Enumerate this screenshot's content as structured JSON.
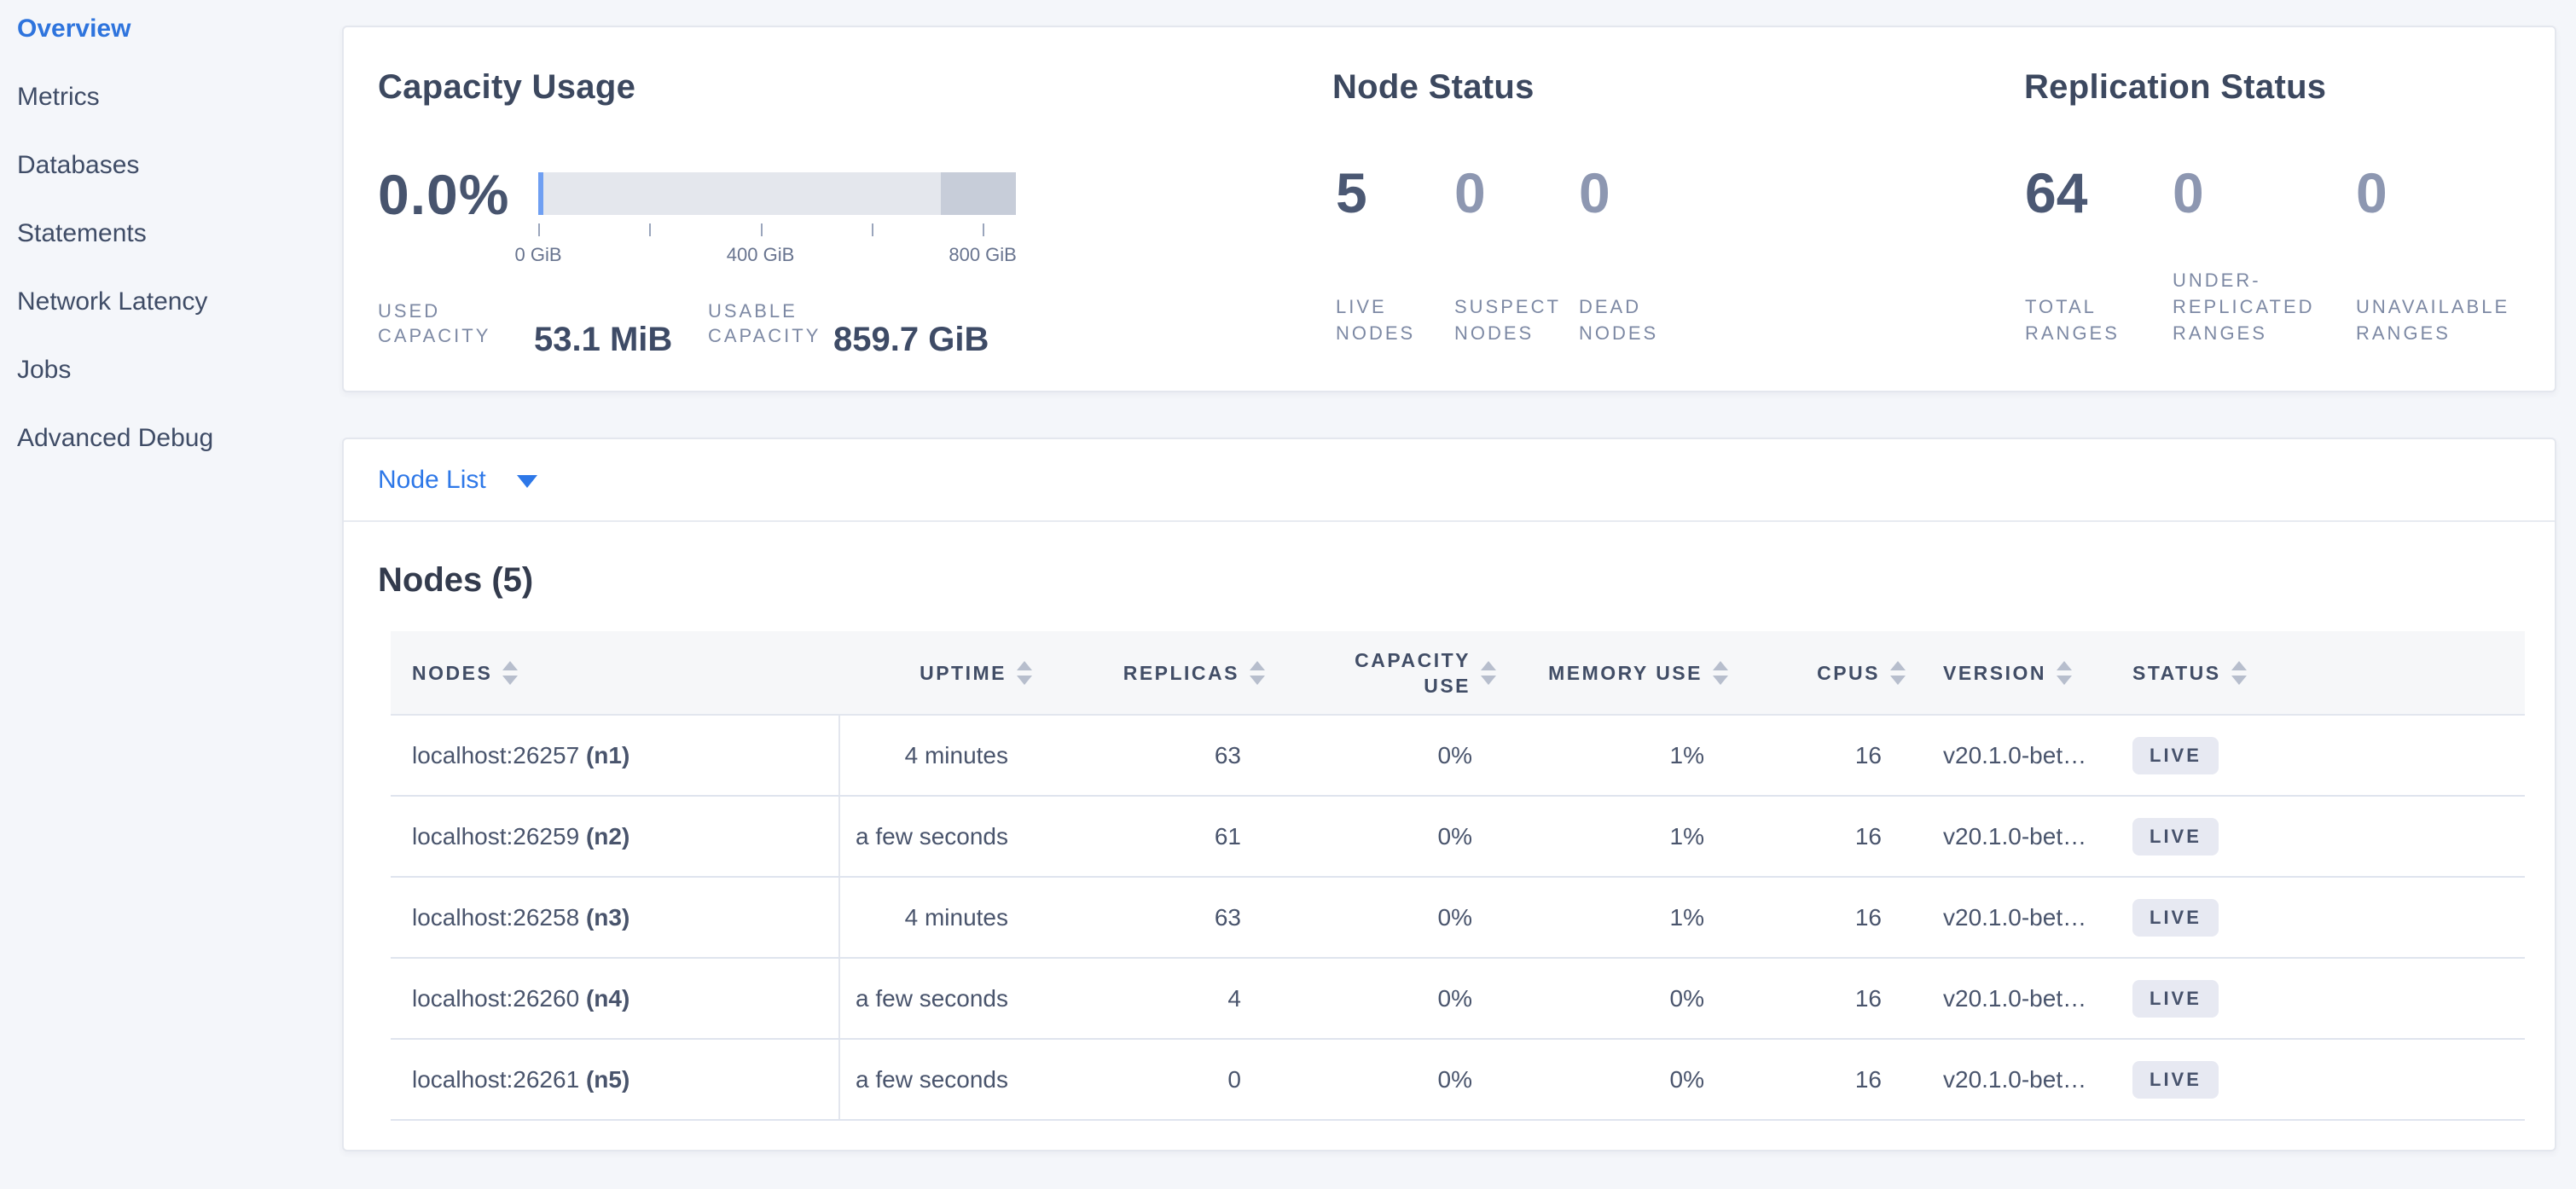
{
  "sidebar": {
    "items": [
      {
        "label": "Overview",
        "active": true
      },
      {
        "label": "Metrics",
        "active": false
      },
      {
        "label": "Databases",
        "active": false
      },
      {
        "label": "Statements",
        "active": false
      },
      {
        "label": "Network Latency",
        "active": false
      },
      {
        "label": "Jobs",
        "active": false
      },
      {
        "label": "Advanced Debug",
        "active": false
      }
    ]
  },
  "capacity": {
    "title": "Capacity Usage",
    "percent": "0.0%",
    "used": {
      "label_lines": [
        "USED",
        "CAPACITY"
      ],
      "value": "53.1 MiB"
    },
    "usable": {
      "label_lines": [
        "USABLE",
        "CAPACITY"
      ],
      "value": "859.7 GiB"
    }
  },
  "chart_data": {
    "type": "bar",
    "title": "Capacity Usage",
    "unit": "GiB",
    "axis_max_gib": 859.7,
    "ticks": [
      {
        "gib": 0,
        "label": "0 GiB"
      },
      {
        "gib": 200,
        "label": ""
      },
      {
        "gib": 400,
        "label": "400 GiB"
      },
      {
        "gib": 600,
        "label": ""
      },
      {
        "gib": 800,
        "label": "800 GiB"
      }
    ],
    "segments": [
      {
        "name": "used",
        "from_gib": 0,
        "to_gib": 0.052,
        "color": "#6f9ff2"
      },
      {
        "name": "other-used-disk",
        "from_gib": 725,
        "to_gib": 859.7,
        "color": "#c7cdd9"
      }
    ],
    "track_color": "#e4e7ed"
  },
  "node_status": {
    "title": "Node Status",
    "metrics": [
      {
        "value": "5",
        "dim": false,
        "label_lines": [
          "LIVE",
          "NODES"
        ]
      },
      {
        "value": "0",
        "dim": true,
        "label_lines": [
          "SUSPECT",
          "NODES"
        ]
      },
      {
        "value": "0",
        "dim": true,
        "label_lines": [
          "DEAD",
          "NODES"
        ]
      }
    ]
  },
  "replication_status": {
    "title": "Replication Status",
    "metrics": [
      {
        "value": "64",
        "dim": false,
        "label_lines": [
          "TOTAL",
          "RANGES"
        ]
      },
      {
        "value": "0",
        "dim": true,
        "label_lines": [
          "UNDER-",
          "REPLICATED",
          "RANGES"
        ]
      },
      {
        "value": "0",
        "dim": true,
        "label_lines": [
          "UNAVAILABLE",
          "RANGES"
        ]
      }
    ]
  },
  "node_list": {
    "label": "Node List"
  },
  "nodes_table": {
    "title": "Nodes (5)",
    "columns": [
      "NODES",
      "UPTIME",
      "REPLICAS",
      "CAPACITY USE",
      "MEMORY USE",
      "CPUS",
      "VERSION",
      "STATUS"
    ],
    "rows": [
      {
        "address": "localhost:26257",
        "node_id": "(n1)",
        "uptime": "4 minutes",
        "replicas": "63",
        "capacity_use": "0%",
        "memory_use": "1%",
        "cpus": "16",
        "version": "v20.1.0-bet…",
        "status": "LIVE"
      },
      {
        "address": "localhost:26259",
        "node_id": "(n2)",
        "uptime": "a few seconds",
        "replicas": "61",
        "capacity_use": "0%",
        "memory_use": "1%",
        "cpus": "16",
        "version": "v20.1.0-bet…",
        "status": "LIVE"
      },
      {
        "address": "localhost:26258",
        "node_id": "(n3)",
        "uptime": "4 minutes",
        "replicas": "63",
        "capacity_use": "0%",
        "memory_use": "1%",
        "cpus": "16",
        "version": "v20.1.0-bet…",
        "status": "LIVE"
      },
      {
        "address": "localhost:26260",
        "node_id": "(n4)",
        "uptime": "a few seconds",
        "replicas": "4",
        "capacity_use": "0%",
        "memory_use": "0%",
        "cpus": "16",
        "version": "v20.1.0-bet…",
        "status": "LIVE"
      },
      {
        "address": "localhost:26261",
        "node_id": "(n5)",
        "uptime": "a few seconds",
        "replicas": "0",
        "capacity_use": "0%",
        "memory_use": "0%",
        "cpus": "16",
        "version": "v20.1.0-bet…",
        "status": "LIVE"
      }
    ]
  }
}
